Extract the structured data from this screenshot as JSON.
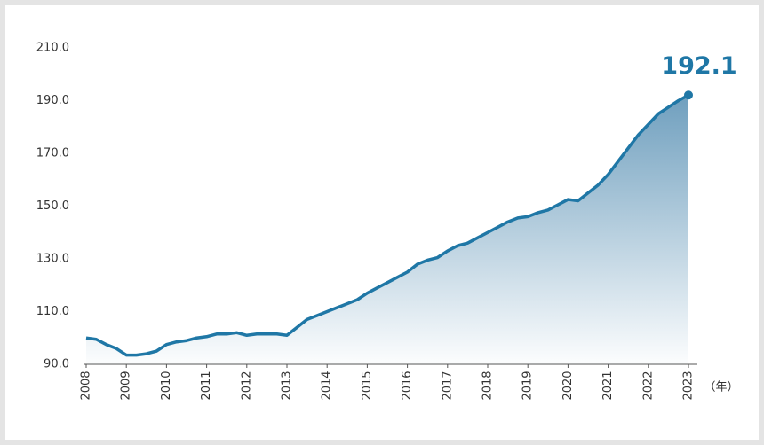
{
  "chart_data": {
    "type": "line",
    "x": [
      2008,
      2008.25,
      2008.5,
      2008.75,
      2009,
      2009.25,
      2009.5,
      2009.75,
      2010,
      2010.25,
      2010.5,
      2010.75,
      2011,
      2011.25,
      2011.5,
      2011.75,
      2012,
      2012.25,
      2012.5,
      2012.75,
      2013,
      2013.25,
      2013.5,
      2013.75,
      2014,
      2014.25,
      2014.5,
      2014.75,
      2015,
      2015.25,
      2015.5,
      2015.75,
      2016,
      2016.25,
      2016.5,
      2016.75,
      2017,
      2017.25,
      2017.5,
      2017.75,
      2018,
      2018.25,
      2018.5,
      2018.75,
      2019,
      2019.25,
      2019.5,
      2019.75,
      2020,
      2020.25,
      2020.5,
      2020.75,
      2021,
      2021.25,
      2021.5,
      2021.75,
      2022,
      2022.25,
      2022.5,
      2022.75,
      2023
    ],
    "series": [
      {
        "color": "#1f77a6",
        "values": [
          100,
          99.5,
          97.5,
          96,
          93.5,
          93.5,
          94,
          95,
          97.5,
          98.5,
          99,
          100,
          100.5,
          101.5,
          101.5,
          102,
          101,
          101.5,
          101.5,
          101.5,
          101,
          104,
          107,
          108.5,
          110,
          111.5,
          113,
          114.5,
          117,
          119,
          121,
          123,
          125,
          128,
          129.5,
          130.5,
          133,
          135,
          136,
          138,
          140,
          142,
          144,
          145.5,
          146,
          147.5,
          148.5,
          150.5,
          152.5,
          152,
          155,
          158,
          162,
          167,
          172,
          177,
          181,
          185,
          187.5,
          190,
          192.1
        ]
      }
    ],
    "end_label": "192.1",
    "x_label": "（年）",
    "xlim": [
      2008,
      2023
    ],
    "xticks": [
      2008,
      2009,
      2010,
      2011,
      2012,
      2013,
      2014,
      2015,
      2016,
      2017,
      2018,
      2019,
      2020,
      2021,
      2022,
      2023
    ],
    "ylim": [
      90,
      210
    ],
    "yticks": [
      {
        "value": 90,
        "label": "90.0"
      },
      {
        "value": 110,
        "label": "110.0"
      },
      {
        "value": 130,
        "label": "130.0"
      },
      {
        "value": 150,
        "label": "150.0"
      },
      {
        "value": 170,
        "label": "170.0"
      },
      {
        "value": 190,
        "label": "190.0"
      },
      {
        "value": 210,
        "label": "210.0"
      }
    ],
    "grid": false
  }
}
